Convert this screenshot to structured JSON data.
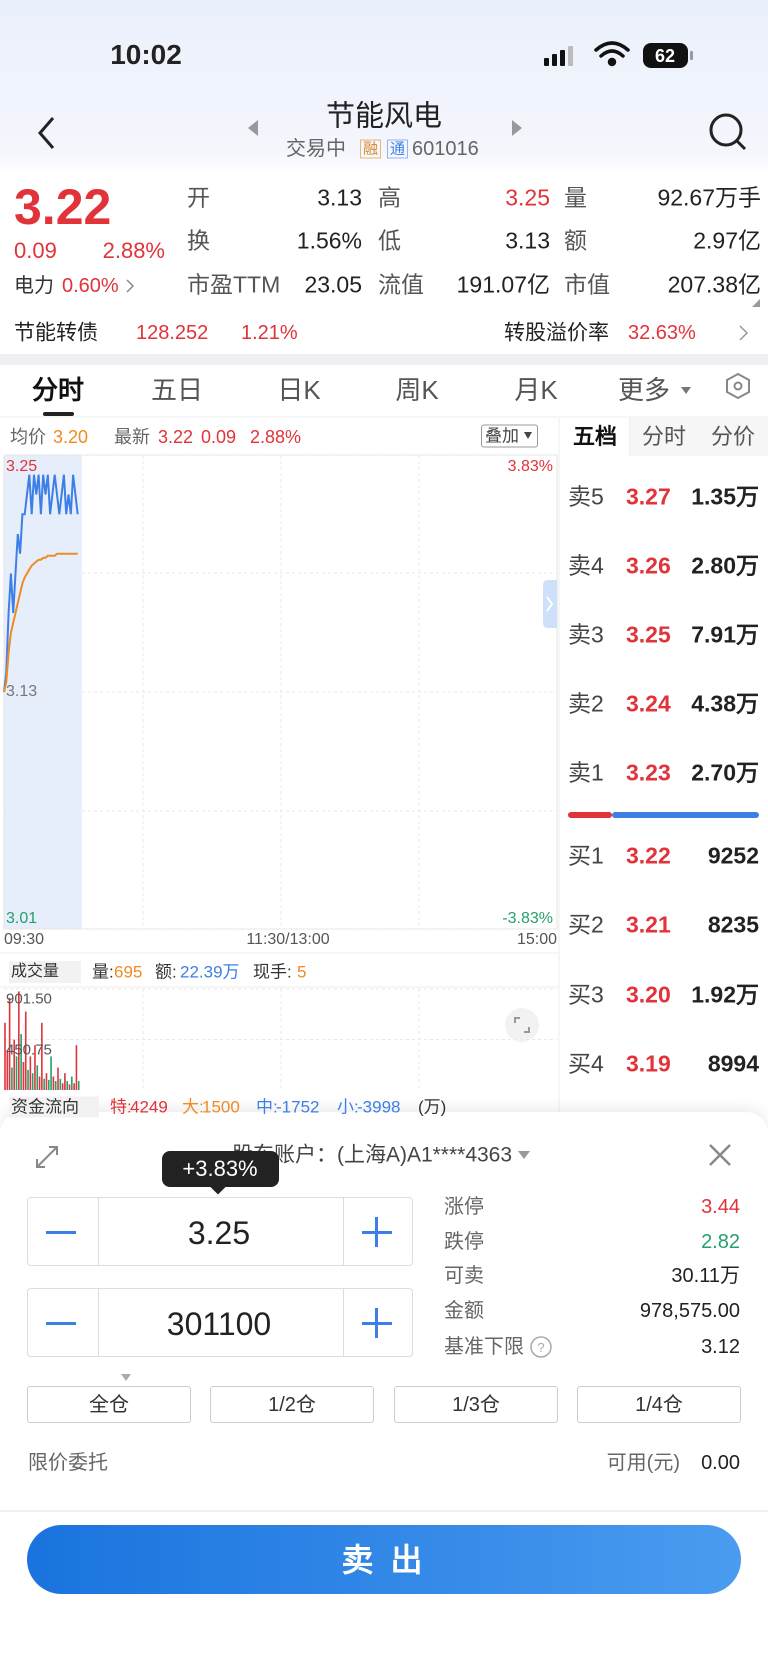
{
  "status_bar": {
    "time": "10:02",
    "battery": "62"
  },
  "header": {
    "title": "节能风电",
    "status": "交易中",
    "tag_margin": "融",
    "tag_connect": "通",
    "code": "601016"
  },
  "quote": {
    "price": "3.22",
    "change": "0.09",
    "change_pct": "2.88%",
    "sector": "电力",
    "sector_pct": "0.60%",
    "fields": [
      {
        "label": "开",
        "value": "3.13"
      },
      {
        "label": "高",
        "value": "3.25"
      },
      {
        "label": "量",
        "value": "92.67万手"
      },
      {
        "label": "换",
        "value": "1.56%"
      },
      {
        "label": "低",
        "value": "3.13"
      },
      {
        "label": "额",
        "value": "2.97亿"
      },
      {
        "label": "市盈TTM",
        "value": "23.05"
      },
      {
        "label": "流值",
        "value": "191.07亿"
      },
      {
        "label": "市值",
        "value": "207.38亿"
      }
    ]
  },
  "bond": {
    "name": "节能转债",
    "price": "128.252",
    "pct": "1.21%",
    "premium_label": "转股溢价率",
    "premium": "32.63%"
  },
  "tabs": [
    "分时",
    "五日",
    "日K",
    "周K",
    "月K",
    "更多"
  ],
  "chart_info": {
    "avg_label": "均价",
    "avg": "3.20",
    "latest_label": "最新",
    "latest": "3.22",
    "change": "0.09",
    "pct": "2.88%",
    "overlay": "叠加"
  },
  "intraday_chart": {
    "type": "line",
    "xlim": [
      0,
      240
    ],
    "ylim": [
      3.01,
      3.25
    ],
    "yticks": [
      3.25,
      3.13,
      3.01
    ],
    "pct_labels": [
      "3.83%",
      "-3.83%"
    ],
    "x_labels": [
      "09:30",
      "11:30/13:00",
      "15:00"
    ],
    "x": [
      0,
      1,
      2,
      3,
      4,
      5,
      6,
      7,
      8,
      9,
      10,
      11,
      12,
      13,
      14,
      15,
      16,
      17,
      18,
      19,
      20,
      21,
      22,
      23,
      24,
      25,
      26,
      27,
      28,
      29,
      30,
      31,
      32
    ],
    "series": [
      {
        "color": "#3d7fe6",
        "values": [
          3.13,
          3.14,
          3.17,
          3.19,
          3.17,
          3.19,
          3.21,
          3.2,
          3.22,
          3.22,
          3.23,
          3.24,
          3.22,
          3.24,
          3.23,
          3.24,
          3.22,
          3.24,
          3.23,
          3.24,
          3.22,
          3.23,
          3.24,
          3.23,
          3.22,
          3.23,
          3.24,
          3.22,
          3.23,
          3.22,
          3.24,
          3.23,
          3.22
        ]
      },
      {
        "color": "#f08a24",
        "values": [
          3.13,
          3.135,
          3.15,
          3.16,
          3.165,
          3.17,
          3.175,
          3.18,
          3.185,
          3.188,
          3.19,
          3.192,
          3.194,
          3.195,
          3.196,
          3.197,
          3.197,
          3.198,
          3.198,
          3.199,
          3.199,
          3.199,
          3.199,
          3.2,
          3.2,
          3.2,
          3.2,
          3.2,
          3.2,
          3.2,
          3.2,
          3.2,
          3.2
        ]
      }
    ]
  },
  "volume_chart": {
    "type": "bar",
    "label": "成交量",
    "stats": [
      {
        "label": "量:",
        "value": "695"
      },
      {
        "label": "额:",
        "value": "22.39万"
      },
      {
        "label": "现手:",
        "value": "5"
      }
    ],
    "ylim": [
      0,
      901.5
    ],
    "yticks": [
      {
        "value": 901.5,
        "label": "901.50"
      },
      {
        "value": 450.75,
        "label": "450.75"
      }
    ],
    "values": [
      600,
      350,
      820,
      200,
      450,
      300,
      880,
      500,
      250,
      700,
      180,
      300,
      150,
      400,
      220,
      120,
      600,
      100,
      150,
      90,
      300,
      120,
      80,
      200,
      100,
      60,
      150,
      80,
      50,
      120,
      60,
      400,
      80
    ],
    "colors": [
      "#e0333a",
      "#e0333a",
      "#e0333a",
      "#26a06a",
      "#e0333a",
      "#26a06a",
      "#e0333a",
      "#26a06a",
      "#e0333a",
      "#e0333a",
      "#26a06a",
      "#e0333a",
      "#26a06a",
      "#e0333a",
      "#26a06a",
      "#e0333a",
      "#e0333a",
      "#26a06a",
      "#e0333a",
      "#26a06a",
      "#26a06a",
      "#e0333a",
      "#26a06a",
      "#e0333a",
      "#26a06a",
      "#e0333a",
      "#e0333a",
      "#26a06a",
      "#e0333a",
      "#26a06a",
      "#e0333a",
      "#e0333a",
      "#26a06a"
    ]
  },
  "fund_flow": {
    "label": "资金流向",
    "items": [
      {
        "label": "特:",
        "value": "4249"
      },
      {
        "label": "大:",
        "value": "1500"
      },
      {
        "label": "中:",
        "value": "-1752"
      },
      {
        "label": "小:",
        "value": "-3998"
      }
    ],
    "unit": "(万)"
  },
  "order_book": {
    "tabs": [
      "五档",
      "分时",
      "分价"
    ],
    "asks": [
      {
        "label": "卖5",
        "price": "3.27",
        "volume": "1.35万"
      },
      {
        "label": "卖4",
        "price": "3.26",
        "volume": "2.80万"
      },
      {
        "label": "卖3",
        "price": "3.25",
        "volume": "7.91万"
      },
      {
        "label": "卖2",
        "price": "3.24",
        "volume": "4.38万"
      },
      {
        "label": "卖1",
        "price": "3.23",
        "volume": "2.70万"
      }
    ],
    "bids": [
      {
        "label": "买1",
        "price": "3.22",
        "volume": "9252"
      },
      {
        "label": "买2",
        "price": "3.21",
        "volume": "8235"
      },
      {
        "label": "买3",
        "price": "3.20",
        "volume": "1.92万"
      },
      {
        "label": "买4",
        "price": "3.19",
        "volume": "8994"
      }
    ]
  },
  "trade_panel": {
    "account": "股东账户：(上海A)A1****4363",
    "tooltip": "+3.83%",
    "price": "3.25",
    "quantity": "301100",
    "info": [
      {
        "label": "涨停",
        "value": "3.44"
      },
      {
        "label": "跌停",
        "value": "2.82"
      },
      {
        "label": "可卖",
        "value": "30.11万"
      },
      {
        "label": "金额",
        "value": "978,575.00"
      },
      {
        "label": "基准下限",
        "value": "3.12"
      }
    ],
    "positions": [
      "全仓",
      "1/2仓",
      "1/3仓",
      "1/4仓"
    ],
    "order_type": "限价委托",
    "available_label": "可用(元)",
    "available": "0.00",
    "submit": "卖 出"
  }
}
